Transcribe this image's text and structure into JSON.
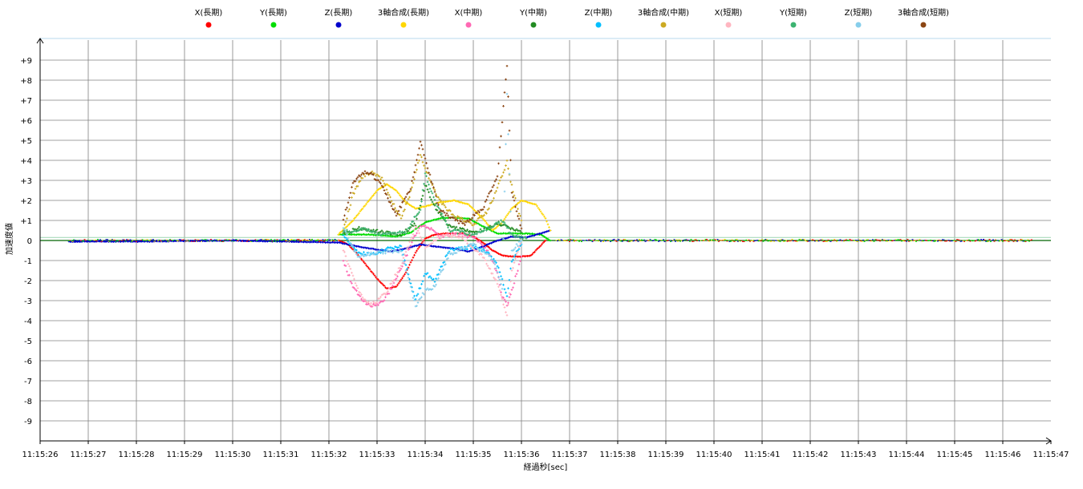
{
  "chart_data": {
    "type": "scatter",
    "title": "",
    "xlabel": "経過秒[sec]",
    "ylabel": "加速度値",
    "x_ticks": [
      "11:15:26",
      "11:15:27",
      "11:15:28",
      "11:15:29",
      "11:15:30",
      "11:15:31",
      "11:15:32",
      "11:15:33",
      "11:15:34",
      "11:15:35",
      "11:15:36",
      "11:15:37",
      "11:15:38",
      "11:15:39",
      "11:15:40",
      "11:15:41",
      "11:15:42",
      "11:15:43",
      "11:15:44",
      "11:15:45",
      "11:15:46",
      "11:15:47"
    ],
    "y_ticks": [
      "+9",
      "+8",
      "+7",
      "+6",
      "+5",
      "+4",
      "+3",
      "+2",
      "+1",
      "0",
      "-1",
      "-2",
      "-3",
      "-4",
      "-5",
      "-6",
      "-7",
      "-8",
      "-9"
    ],
    "xlim": [
      "11:15:26",
      "11:15:47"
    ],
    "ylim": [
      -10,
      10
    ],
    "grid": true,
    "legend_position": "top",
    "series": [
      {
        "name": "X(長期)",
        "color": "#ff0000",
        "points": [
          [
            32.2,
            0.0
          ],
          [
            32.4,
            -0.2
          ],
          [
            32.6,
            -0.7
          ],
          [
            32.8,
            -1.3
          ],
          [
            33.0,
            -1.9
          ],
          [
            33.2,
            -2.4
          ],
          [
            33.4,
            -2.3
          ],
          [
            33.6,
            -1.6
          ],
          [
            33.8,
            -0.6
          ],
          [
            34.0,
            0.1
          ],
          [
            34.2,
            0.3
          ],
          [
            34.5,
            0.35
          ],
          [
            34.8,
            0.35
          ],
          [
            35.0,
            0.2
          ],
          [
            35.2,
            -0.1
          ],
          [
            35.4,
            -0.5
          ],
          [
            35.6,
            -0.75
          ],
          [
            35.8,
            -0.8
          ],
          [
            36.0,
            -0.8
          ],
          [
            36.2,
            -0.75
          ],
          [
            36.5,
            0.0
          ]
        ]
      },
      {
        "name": "Y(長期)",
        "color": "#00dd00",
        "points": [
          [
            32.2,
            0.3
          ],
          [
            32.5,
            0.3
          ],
          [
            32.8,
            0.3
          ],
          [
            33.1,
            0.25
          ],
          [
            33.4,
            0.2
          ],
          [
            33.7,
            0.4
          ],
          [
            34.0,
            0.9
          ],
          [
            34.3,
            1.1
          ],
          [
            34.6,
            1.15
          ],
          [
            34.9,
            1.1
          ],
          [
            35.2,
            0.7
          ],
          [
            35.5,
            0.35
          ],
          [
            35.8,
            0.35
          ],
          [
            36.1,
            0.35
          ],
          [
            36.4,
            0.3
          ],
          [
            36.6,
            0.0
          ]
        ]
      },
      {
        "name": "Z(長期)",
        "color": "#0000cc",
        "points": [
          [
            26.6,
            -0.05
          ],
          [
            28,
            -0.05
          ],
          [
            30,
            0.0
          ],
          [
            32.2,
            -0.1
          ],
          [
            32.6,
            -0.3
          ],
          [
            33.0,
            -0.45
          ],
          [
            33.3,
            -0.55
          ],
          [
            33.6,
            -0.4
          ],
          [
            33.9,
            -0.2
          ],
          [
            34.2,
            -0.3
          ],
          [
            34.6,
            -0.4
          ],
          [
            34.9,
            -0.55
          ],
          [
            35.2,
            -0.3
          ],
          [
            35.5,
            0.0
          ],
          [
            35.8,
            0.2
          ],
          [
            36.1,
            0.15
          ],
          [
            36.4,
            0.35
          ],
          [
            36.6,
            0.5
          ]
        ]
      },
      {
        "name": "3軸合成(長期)",
        "color": "#ffd700",
        "points": [
          [
            32.2,
            0.3
          ],
          [
            32.5,
            1.0
          ],
          [
            32.8,
            1.9
          ],
          [
            33.0,
            2.5
          ],
          [
            33.2,
            2.8
          ],
          [
            33.4,
            2.5
          ],
          [
            33.6,
            1.9
          ],
          [
            33.8,
            1.6
          ],
          [
            34.0,
            1.7
          ],
          [
            34.3,
            1.9
          ],
          [
            34.6,
            2.0
          ],
          [
            34.9,
            1.8
          ],
          [
            35.2,
            1.1
          ],
          [
            35.4,
            0.5
          ],
          [
            35.6,
            0.9
          ],
          [
            35.8,
            1.6
          ],
          [
            36.0,
            2.0
          ],
          [
            36.3,
            1.8
          ],
          [
            36.5,
            1.1
          ],
          [
            36.6,
            0.5
          ]
        ]
      },
      {
        "name": "X(中期)",
        "color": "#ff69b4",
        "points": [
          [
            32.3,
            -1.0
          ],
          [
            32.5,
            -2.3
          ],
          [
            32.7,
            -3.0
          ],
          [
            32.9,
            -3.25
          ],
          [
            33.1,
            -3.1
          ],
          [
            33.3,
            -2.4
          ],
          [
            33.5,
            -1.4
          ],
          [
            33.7,
            -0.2
          ],
          [
            33.9,
            0.8
          ],
          [
            34.1,
            0.6
          ],
          [
            34.3,
            0.2
          ],
          [
            34.6,
            0.3
          ],
          [
            35.0,
            0.2
          ],
          [
            35.3,
            -0.5
          ],
          [
            35.5,
            -1.6
          ],
          [
            35.6,
            -2.8
          ],
          [
            35.7,
            -3.2
          ],
          [
            35.8,
            -2.5
          ],
          [
            36.0,
            -0.8
          ]
        ]
      },
      {
        "name": "Y(中期)",
        "color": "#228b22",
        "points": [
          [
            32.3,
            0.3
          ],
          [
            32.6,
            0.6
          ],
          [
            32.9,
            0.5
          ],
          [
            33.2,
            0.4
          ],
          [
            33.5,
            0.3
          ],
          [
            33.8,
            0.8
          ],
          [
            34.0,
            2.8
          ],
          [
            34.2,
            1.7
          ],
          [
            34.5,
            0.7
          ],
          [
            35.0,
            0.4
          ],
          [
            35.3,
            0.6
          ],
          [
            35.5,
            0.9
          ],
          [
            35.7,
            0.7
          ],
          [
            36.0,
            0.4
          ]
        ]
      },
      {
        "name": "Z(中期)",
        "color": "#00bfff",
        "points": [
          [
            32.3,
            0.2
          ],
          [
            32.6,
            -0.6
          ],
          [
            32.9,
            -0.7
          ],
          [
            33.2,
            -0.4
          ],
          [
            33.5,
            -0.3
          ],
          [
            33.8,
            -3.0
          ],
          [
            34.0,
            -1.6
          ],
          [
            34.2,
            -2.0
          ],
          [
            34.5,
            -0.5
          ],
          [
            35.0,
            -0.3
          ],
          [
            35.3,
            -0.6
          ],
          [
            35.5,
            -1.2
          ],
          [
            35.7,
            -2.8
          ],
          [
            35.8,
            -1.0
          ],
          [
            36.0,
            -0.2
          ]
        ]
      },
      {
        "name": "3軸合成(中期)",
        "color": "#ccaa22",
        "points": [
          [
            32.3,
            0.5
          ],
          [
            32.5,
            2.3
          ],
          [
            32.7,
            3.2
          ],
          [
            32.9,
            3.4
          ],
          [
            33.1,
            3.1
          ],
          [
            33.3,
            2.0
          ],
          [
            33.5,
            1.1
          ],
          [
            33.7,
            2.4
          ],
          [
            33.9,
            4.3
          ],
          [
            34.1,
            3.0
          ],
          [
            34.3,
            2.0
          ],
          [
            34.6,
            1.2
          ],
          [
            35.0,
            0.8
          ],
          [
            35.3,
            1.5
          ],
          [
            35.5,
            2.6
          ],
          [
            35.7,
            3.9
          ],
          [
            35.8,
            2.7
          ],
          [
            36.0,
            1.0
          ]
        ]
      },
      {
        "name": "X(短期)",
        "color": "#ffb6c1",
        "points": [
          [
            32.3,
            -0.5
          ],
          [
            32.5,
            -1.8
          ],
          [
            32.7,
            -2.9
          ],
          [
            32.9,
            -3.2
          ],
          [
            33.2,
            -2.6
          ],
          [
            33.5,
            -1.2
          ],
          [
            33.8,
            0.7
          ],
          [
            34.0,
            -0.3
          ],
          [
            34.4,
            0.3
          ],
          [
            34.8,
            0.1
          ],
          [
            35.2,
            -0.8
          ],
          [
            35.5,
            -2.1
          ],
          [
            35.7,
            -3.8
          ],
          [
            35.8,
            -1.5
          ],
          [
            36.0,
            0.0
          ]
        ]
      },
      {
        "name": "Y(短期)",
        "color": "#3cb371",
        "points": [
          [
            32.3,
            0.4
          ],
          [
            32.7,
            0.6
          ],
          [
            33.1,
            0.3
          ],
          [
            33.6,
            0.4
          ],
          [
            33.9,
            1.6
          ],
          [
            34.0,
            3.3
          ],
          [
            34.2,
            2.0
          ],
          [
            34.5,
            0.5
          ],
          [
            35.0,
            0.3
          ],
          [
            35.4,
            0.7
          ],
          [
            35.6,
            1.0
          ],
          [
            35.8,
            0.3
          ],
          [
            36.1,
            0.1
          ]
        ]
      },
      {
        "name": "Z(短期)",
        "color": "#87ceeb",
        "points": [
          [
            32.3,
            0.6
          ],
          [
            32.6,
            -0.8
          ],
          [
            33.0,
            -0.6
          ],
          [
            33.5,
            -0.5
          ],
          [
            33.8,
            -3.3
          ],
          [
            34.0,
            -2.5
          ],
          [
            34.2,
            -2.3
          ],
          [
            34.5,
            -0.7
          ],
          [
            35.0,
            -0.2
          ],
          [
            35.4,
            -0.9
          ],
          [
            35.6,
            -2.4
          ],
          [
            35.7,
            7.3
          ],
          [
            35.8,
            -0.5
          ],
          [
            36.0,
            0.0
          ]
        ]
      },
      {
        "name": "3軸合成(短期)",
        "color": "#8b4513",
        "points": [
          [
            32.3,
            1.0
          ],
          [
            32.5,
            2.8
          ],
          [
            32.7,
            3.4
          ],
          [
            32.9,
            3.3
          ],
          [
            33.1,
            2.7
          ],
          [
            33.4,
            1.3
          ],
          [
            33.7,
            2.6
          ],
          [
            33.9,
            4.9
          ],
          [
            34.1,
            3.2
          ],
          [
            34.3,
            1.5
          ],
          [
            34.8,
            0.8
          ],
          [
            35.2,
            1.6
          ],
          [
            35.5,
            3.2
          ],
          [
            35.7,
            8.7
          ],
          [
            35.8,
            2.4
          ],
          [
            36.0,
            0.6
          ]
        ]
      }
    ]
  }
}
